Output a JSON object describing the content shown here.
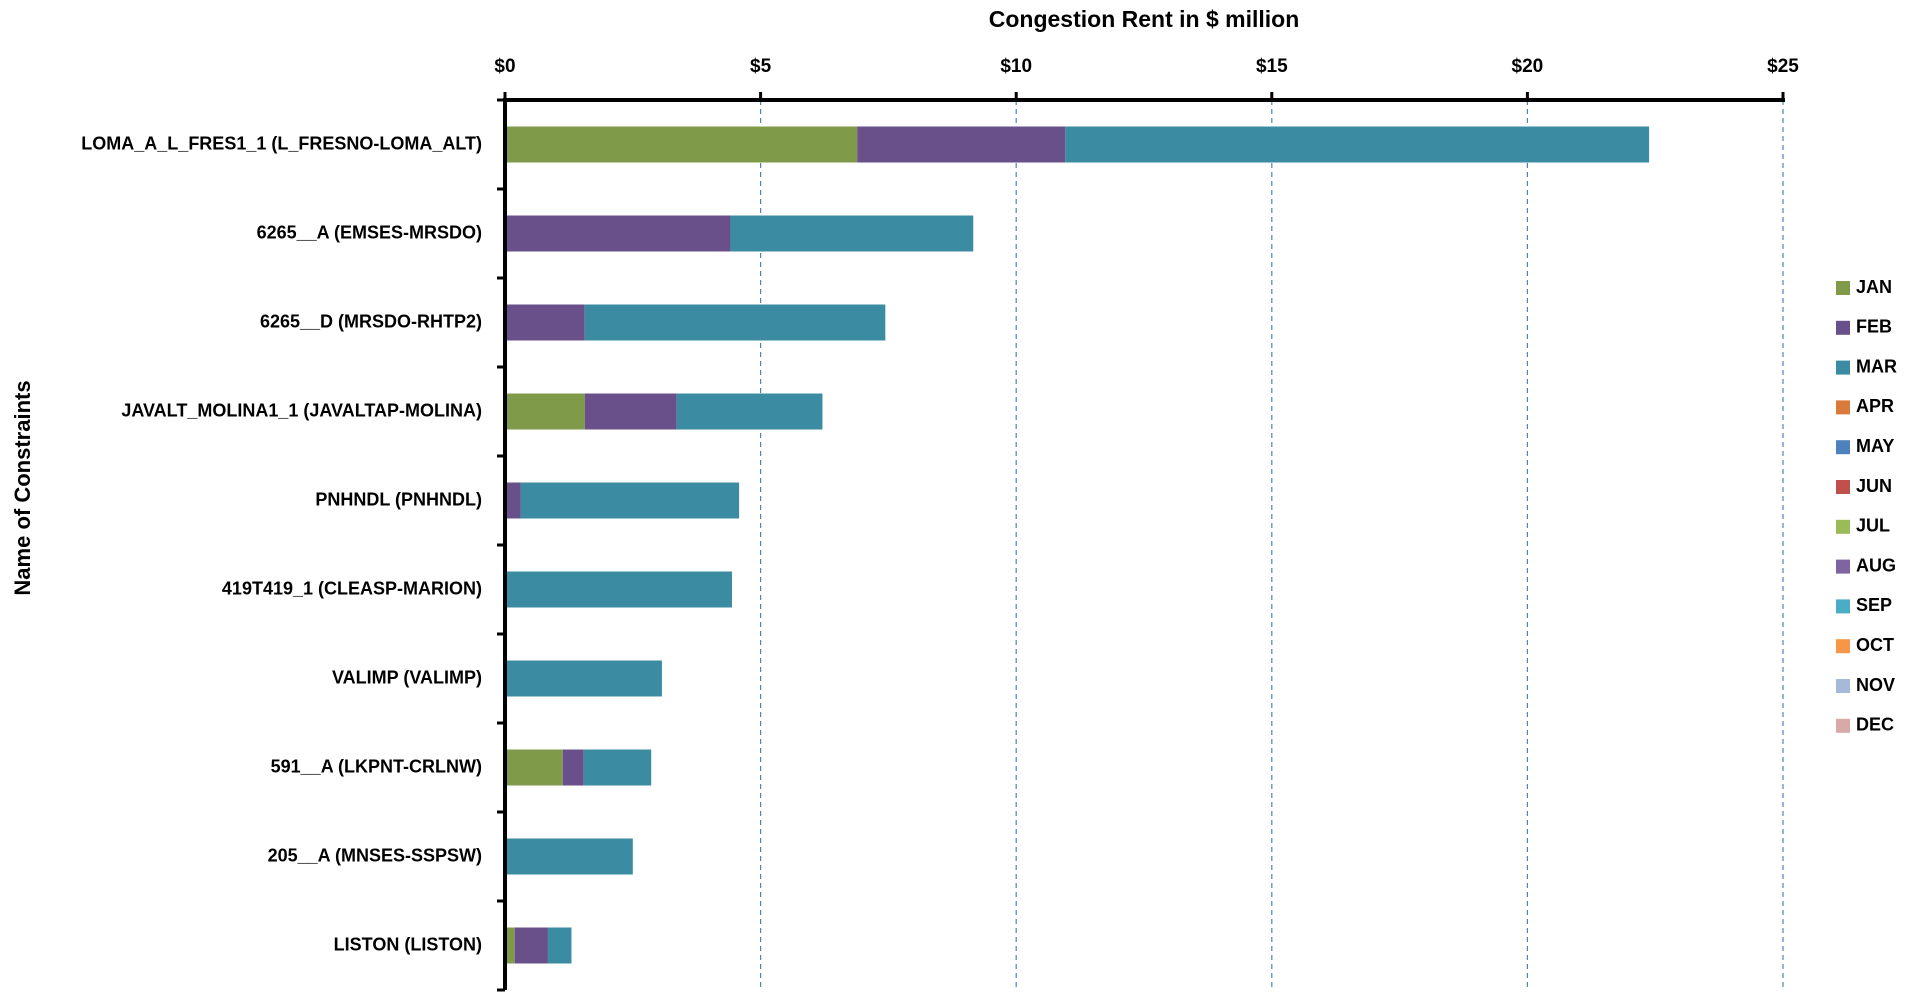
{
  "chart_data": {
    "type": "stacked-barh",
    "title": "Congestion Rent in $ million",
    "y_axis_title": "Name of Constraints",
    "categories": [
      "LOMA_A_L_FRES1_1 (L_FRESNO-LOMA_ALT)",
      "6265__A (EMSES-MRSDO)",
      "6265__D (MRSDO-RHTP2)",
      "JAVALT_MOLINA1_1 (JAVALTAP-MOLINA)",
      "PNHNDL (PNHNDL)",
      "419T419_1 (CLEASP-MARION)",
      "VALIMP (VALIMP)",
      "591__A (LKPNT-CRLNW)",
      "205__A (MNSES-SSPSW)",
      "LISTON (LISTON)"
    ],
    "series": [
      {
        "name": "JAN",
        "color": "#7f9a48",
        "values": [
          6.89,
          0,
          0,
          1.56,
          0,
          0,
          0,
          1.13,
          0,
          0.19
        ]
      },
      {
        "name": "FEB",
        "color": "#69508a",
        "values": [
          4.07,
          4.41,
          1.56,
          1.8,
          0.31,
          0,
          0,
          0.41,
          0,
          0.65
        ]
      },
      {
        "name": "MAR",
        "color": "#3b8ca3",
        "values": [
          11.42,
          4.75,
          5.88,
          2.85,
          4.27,
          4.44,
          3.07,
          1.32,
          2.5,
          0.46
        ]
      },
      {
        "name": "APR",
        "color": "#d87a3a",
        "values": [
          0,
          0,
          0,
          0,
          0,
          0,
          0,
          0,
          0,
          0
        ]
      },
      {
        "name": "MAY",
        "color": "#4f81bd",
        "values": [
          0,
          0,
          0,
          0,
          0,
          0,
          0,
          0,
          0,
          0
        ]
      },
      {
        "name": "JUN",
        "color": "#c0504d",
        "values": [
          0,
          0,
          0,
          0,
          0,
          0,
          0,
          0,
          0,
          0
        ]
      },
      {
        "name": "JUL",
        "color": "#9bbb59",
        "values": [
          0,
          0,
          0,
          0,
          0,
          0,
          0,
          0,
          0,
          0
        ]
      },
      {
        "name": "AUG",
        "color": "#8064a2",
        "values": [
          0,
          0,
          0,
          0,
          0,
          0,
          0,
          0,
          0,
          0
        ]
      },
      {
        "name": "SEP",
        "color": "#4bacc6",
        "values": [
          0,
          0,
          0,
          0,
          0,
          0,
          0,
          0,
          0,
          0
        ]
      },
      {
        "name": "OCT",
        "color": "#f79646",
        "values": [
          0,
          0,
          0,
          0,
          0,
          0,
          0,
          0,
          0,
          0
        ]
      },
      {
        "name": "NOV",
        "color": "#a7b9d9",
        "values": [
          0,
          0,
          0,
          0,
          0,
          0,
          0,
          0,
          0,
          0
        ]
      },
      {
        "name": "DEC",
        "color": "#d9a9a7",
        "values": [
          0,
          0,
          0,
          0,
          0,
          0,
          0,
          0,
          0,
          0
        ]
      }
    ],
    "xlim": [
      0,
      25
    ],
    "xticks": [
      {
        "value": 0,
        "label": "$0"
      },
      {
        "value": 5,
        "label": "$5"
      },
      {
        "value": 10,
        "label": "$10"
      },
      {
        "value": 15,
        "label": "$15"
      },
      {
        "value": 20,
        "label": "$20"
      },
      {
        "value": 25,
        "label": "$25"
      }
    ],
    "grid": true,
    "legend": "right"
  }
}
